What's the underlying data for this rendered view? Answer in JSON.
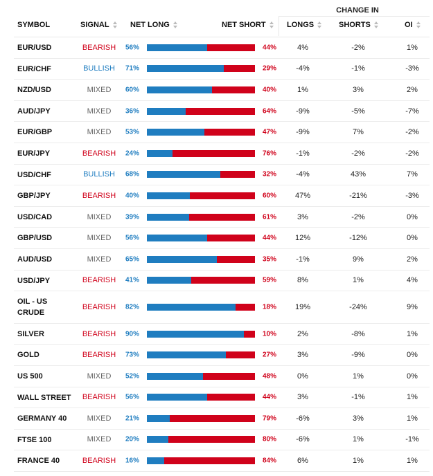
{
  "header": {
    "change_in": "CHANGE IN",
    "columns": [
      "SYMBOL",
      "SIGNAL",
      "NET LONG",
      "NET SHORT",
      "LONGS",
      "SHORTS",
      "OI"
    ]
  },
  "signal_colors": {
    "BEARISH": "#d0021b",
    "BULLISH": "#1f7dc0",
    "MIXED": "#666666"
  },
  "long_color": "#1f7dc0",
  "short_color": "#d0021b",
  "rows": [
    [
      "EUR/USD",
      "BEARISH",
      {
        "value": 56,
        "label": "56%"
      },
      {
        "value": 44,
        "label": "44%"
      },
      "4%",
      "-2%",
      "1%"
    ],
    [
      "EUR/CHF",
      "BULLISH",
      {
        "value": 71,
        "label": "71%"
      },
      {
        "value": 29,
        "label": "29%"
      },
      "-4%",
      "-1%",
      "-3%"
    ],
    [
      "NZD/USD",
      "MIXED",
      {
        "value": 60,
        "label": "60%"
      },
      {
        "value": 40,
        "label": "40%"
      },
      "1%",
      "3%",
      "2%"
    ],
    [
      "AUD/JPY",
      "MIXED",
      {
        "value": 36,
        "label": "36%"
      },
      {
        "value": 64,
        "label": "64%"
      },
      "-9%",
      "-5%",
      "-7%"
    ],
    [
      "EUR/GBP",
      "MIXED",
      {
        "value": 53,
        "label": "53%"
      },
      {
        "value": 47,
        "label": "47%"
      },
      "-9%",
      "7%",
      "-2%"
    ],
    [
      "EUR/JPY",
      "BEARISH",
      {
        "value": 24,
        "label": "24%"
      },
      {
        "value": 76,
        "label": "76%"
      },
      "-1%",
      "-2%",
      "-2%"
    ],
    [
      "USD/CHF",
      "BULLISH",
      {
        "value": 68,
        "label": "68%"
      },
      {
        "value": 32,
        "label": "32%"
      },
      "-4%",
      "43%",
      "7%"
    ],
    [
      "GBP/JPY",
      "BEARISH",
      {
        "value": 40,
        "label": "40%"
      },
      {
        "value": 60,
        "label": "60%"
      },
      "47%",
      "-21%",
      "-3%"
    ],
    [
      "USD/CAD",
      "MIXED",
      {
        "value": 39,
        "label": "39%"
      },
      {
        "value": 61,
        "label": "61%"
      },
      "3%",
      "-2%",
      "0%"
    ],
    [
      "GBP/USD",
      "MIXED",
      {
        "value": 56,
        "label": "56%"
      },
      {
        "value": 44,
        "label": "44%"
      },
      "12%",
      "-12%",
      "0%"
    ],
    [
      "AUD/USD",
      "MIXED",
      {
        "value": 65,
        "label": "65%"
      },
      {
        "value": 35,
        "label": "35%"
      },
      "-1%",
      "9%",
      "2%"
    ],
    [
      "USD/JPY",
      "BEARISH",
      {
        "value": 41,
        "label": "41%"
      },
      {
        "value": 59,
        "label": "59%"
      },
      "8%",
      "1%",
      "4%"
    ],
    [
      "OIL - US CRUDE",
      "BEARISH",
      {
        "value": 82,
        "label": "82%"
      },
      {
        "value": 18,
        "label": "18%"
      },
      "19%",
      "-24%",
      "9%"
    ],
    [
      "SILVER",
      "BEARISH",
      {
        "value": 90,
        "label": "90%"
      },
      {
        "value": 10,
        "label": "10%"
      },
      "2%",
      "-8%",
      "1%"
    ],
    [
      "GOLD",
      "BEARISH",
      {
        "value": 73,
        "label": "73%"
      },
      {
        "value": 27,
        "label": "27%"
      },
      "3%",
      "-9%",
      "0%"
    ],
    [
      "US 500",
      "MIXED",
      {
        "value": 52,
        "label": "52%"
      },
      {
        "value": 48,
        "label": "48%"
      },
      "0%",
      "1%",
      "0%"
    ],
    [
      "WALL STREET",
      "BEARISH",
      {
        "value": 56,
        "label": "56%"
      },
      {
        "value": 44,
        "label": "44%"
      },
      "3%",
      "-1%",
      "1%"
    ],
    [
      "GERMANY 40",
      "MIXED",
      {
        "value": 21,
        "label": "21%"
      },
      {
        "value": 79,
        "label": "79%"
      },
      "-6%",
      "3%",
      "1%"
    ],
    [
      "FTSE 100",
      "MIXED",
      {
        "value": 20,
        "label": "20%"
      },
      {
        "value": 80,
        "label": "80%"
      },
      "-6%",
      "1%",
      "-1%"
    ],
    [
      "FRANCE 40",
      "BEARISH",
      {
        "value": 16,
        "label": "16%"
      },
      {
        "value": 84,
        "label": "84%"
      },
      "6%",
      "1%",
      "1%"
    ]
  ]
}
